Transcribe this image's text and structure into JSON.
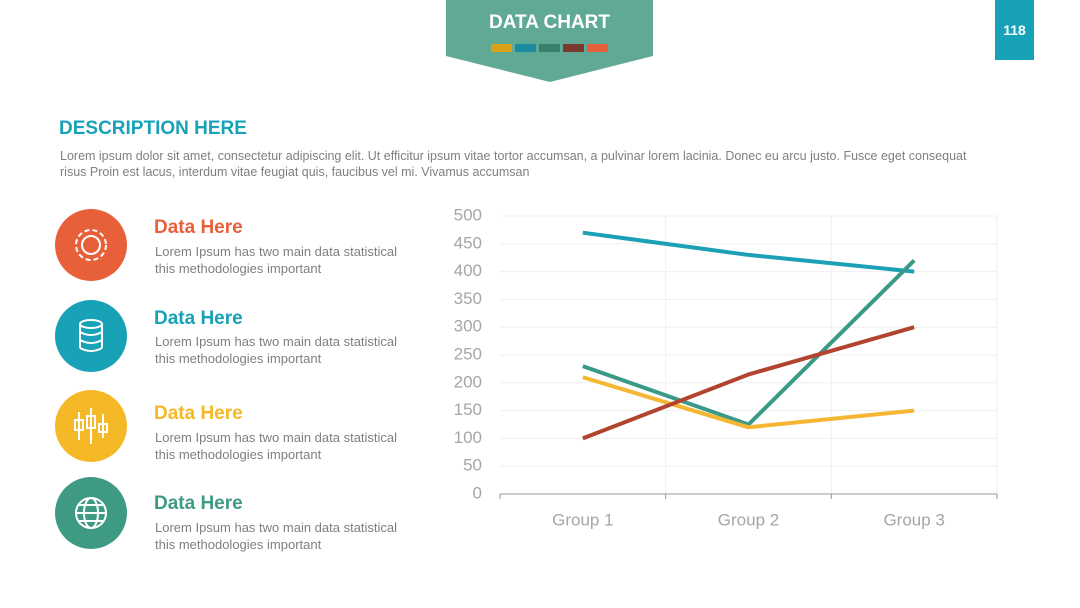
{
  "header": {
    "title": "DATA CHART",
    "page_number": "118"
  },
  "description": {
    "title": "DESCRIPTION HERE",
    "text": "Lorem ipsum dolor sit amet, consectetur adipiscing elit. Ut efficitur ipsum vitae tortor accumsan, a pulvinar lorem lacinia. Donec eu arcu justo. Fusce eget consequat risus Proin est lacus, interdum vitae feugiat quis, faucibus vel mi.  Vivamus accumsan"
  },
  "items": [
    {
      "title": "Data Here",
      "text": "Lorem Ipsum has two main data statistical this methodologies important"
    },
    {
      "title": "Data Here",
      "text": "Lorem Ipsum has two main data statistical this methodologies important"
    },
    {
      "title": "Data Here",
      "text": "Lorem Ipsum has two main data statistical this methodologies important"
    },
    {
      "title": "Data Here",
      "text": "Lorem Ipsum has two main data statistical this methodologies important"
    }
  ],
  "chart_data": {
    "type": "line",
    "categories": [
      "Group 1",
      "Group 2",
      "Group 3"
    ],
    "series": [
      {
        "color": "#1ba0b5",
        "values": [
          470,
          430,
          400
        ]
      },
      {
        "color": "#3a9a87",
        "values": [
          230,
          125,
          420
        ]
      },
      {
        "color": "#f5b731",
        "values": [
          210,
          120,
          150
        ]
      },
      {
        "color": "#b2432f",
        "values": [
          100,
          215,
          300
        ]
      }
    ],
    "ylim": [
      0,
      500
    ],
    "yticks": [
      0,
      50,
      100,
      150,
      200,
      250,
      300,
      350,
      400,
      450,
      500
    ],
    "grid": true
  }
}
